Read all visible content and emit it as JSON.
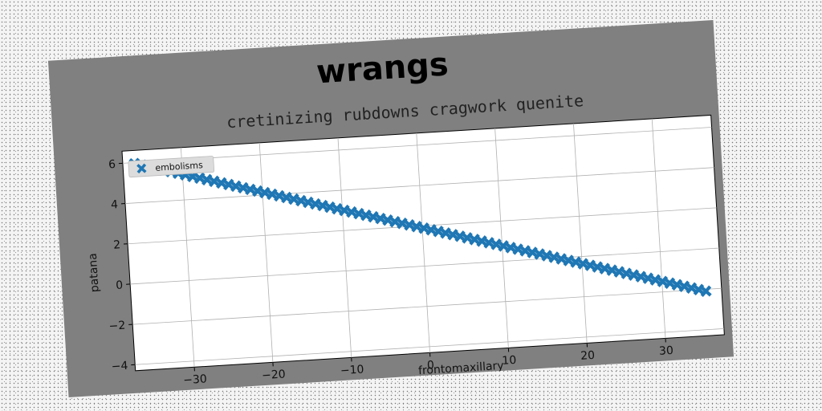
{
  "chart_data": {
    "type": "scatter",
    "suptitle": "wrangs",
    "title": "cretinizing rubdowns cragwork quenite",
    "xlabel": "frontomaxillary",
    "ylabel": "patana",
    "xlim": [
      -37.5,
      37.5
    ],
    "ylim": [
      -4.3,
      6.6
    ],
    "xticks": [
      -30,
      -20,
      -10,
      0,
      10,
      20,
      30
    ],
    "yticks": [
      -4,
      -2,
      0,
      2,
      4,
      6
    ],
    "grid": true,
    "legend_position": "top-left",
    "marker": "X",
    "colors": {
      "series": "#1f77b4",
      "figure_bg": "#808080",
      "axes_bg": "#ffffff"
    },
    "series": [
      {
        "name": "embolisms",
        "x_range": [
          -36,
          35.5
        ],
        "n_points": 80,
        "slope": -0.1125,
        "intercept": 1.9
      }
    ]
  }
}
